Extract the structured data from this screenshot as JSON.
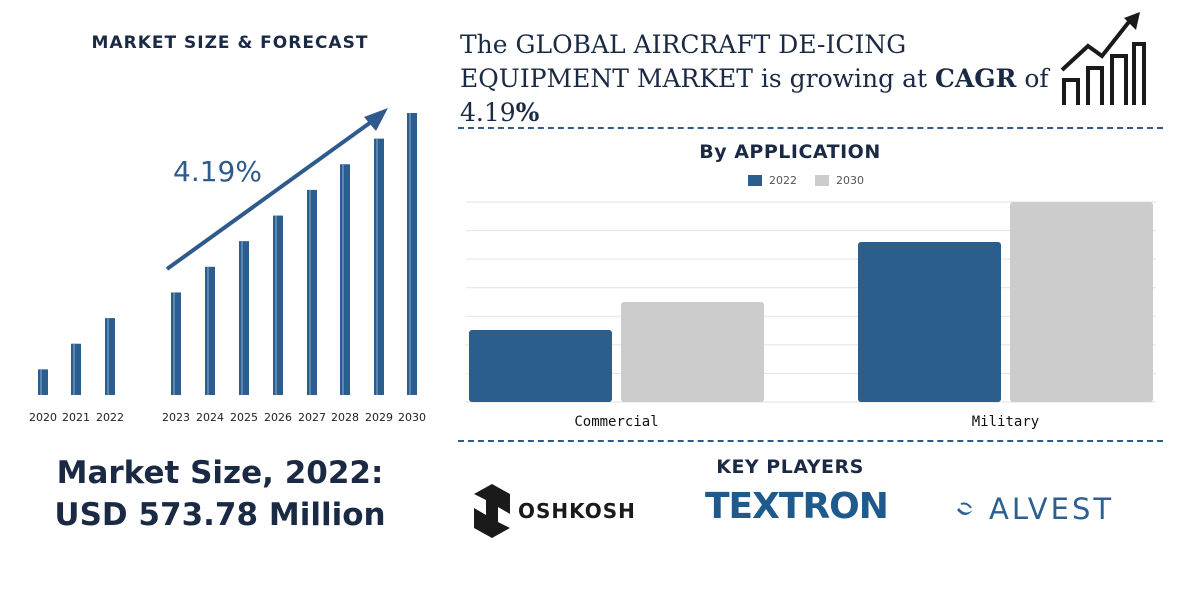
{
  "left_panel": {
    "title": "MARKET SIZE & FORECAST",
    "cagr_label": "4.19%",
    "market_size_line1": "Market Size, 2022:",
    "market_size_line2": "USD 573.78 Million"
  },
  "headline": {
    "part1": "The GLOBAL AIRCRAFT DE-ICING EQUIPMENT MARKET is growing at ",
    "cagr_word": "CAGR",
    "part2": " of 4.19",
    "percent": "%"
  },
  "application_panel": {
    "title": "By APPLICATION"
  },
  "key_players": {
    "title": "KEY PLAYERS",
    "players": [
      "OSHKOSH",
      "TEXTRON",
      "ALVEST"
    ]
  },
  "colors": {
    "primary_bar": "#2b5d8d",
    "secondary_bar": "#cccccc",
    "text_dark": "#1b2a44"
  },
  "chart_data": [
    {
      "type": "bar",
      "title": "MARKET SIZE & FORECAST",
      "categories": [
        "2020",
        "2021",
        "2022",
        "2023",
        "2024",
        "2025",
        "2026",
        "2027",
        "2028",
        "2029",
        "2030"
      ],
      "values": [
        1.0,
        2.0,
        3.0,
        4.0,
        5.0,
        6.0,
        7.0,
        8.0,
        9.0,
        10.0,
        11.0
      ],
      "annotation": "4.19%",
      "grid": false,
      "legend": "none"
    },
    {
      "type": "bar",
      "title": "By APPLICATION",
      "categories": [
        "Commercial",
        "Military"
      ],
      "series": [
        {
          "name": "2022",
          "values": [
            36,
            80
          ]
        },
        {
          "name": "2030",
          "values": [
            50,
            100
          ]
        }
      ],
      "ylim": [
        0,
        100
      ],
      "grid": true,
      "legend": "top-center"
    }
  ]
}
